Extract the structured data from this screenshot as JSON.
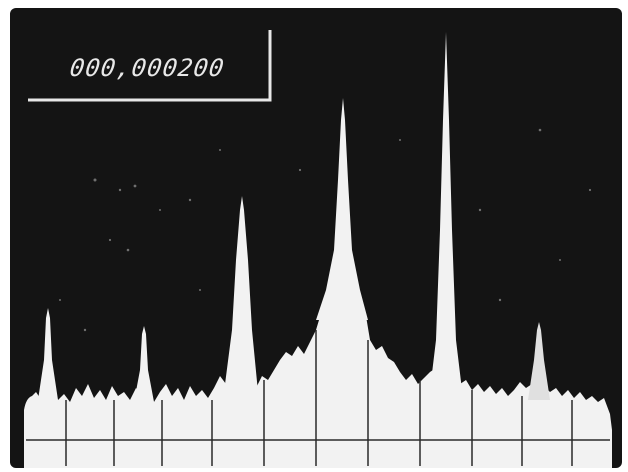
{
  "display": {
    "readout": "000,000200",
    "colors": {
      "screen": "#141414",
      "trace": "#f2f2f2",
      "frame": "#ffffff"
    }
  }
}
